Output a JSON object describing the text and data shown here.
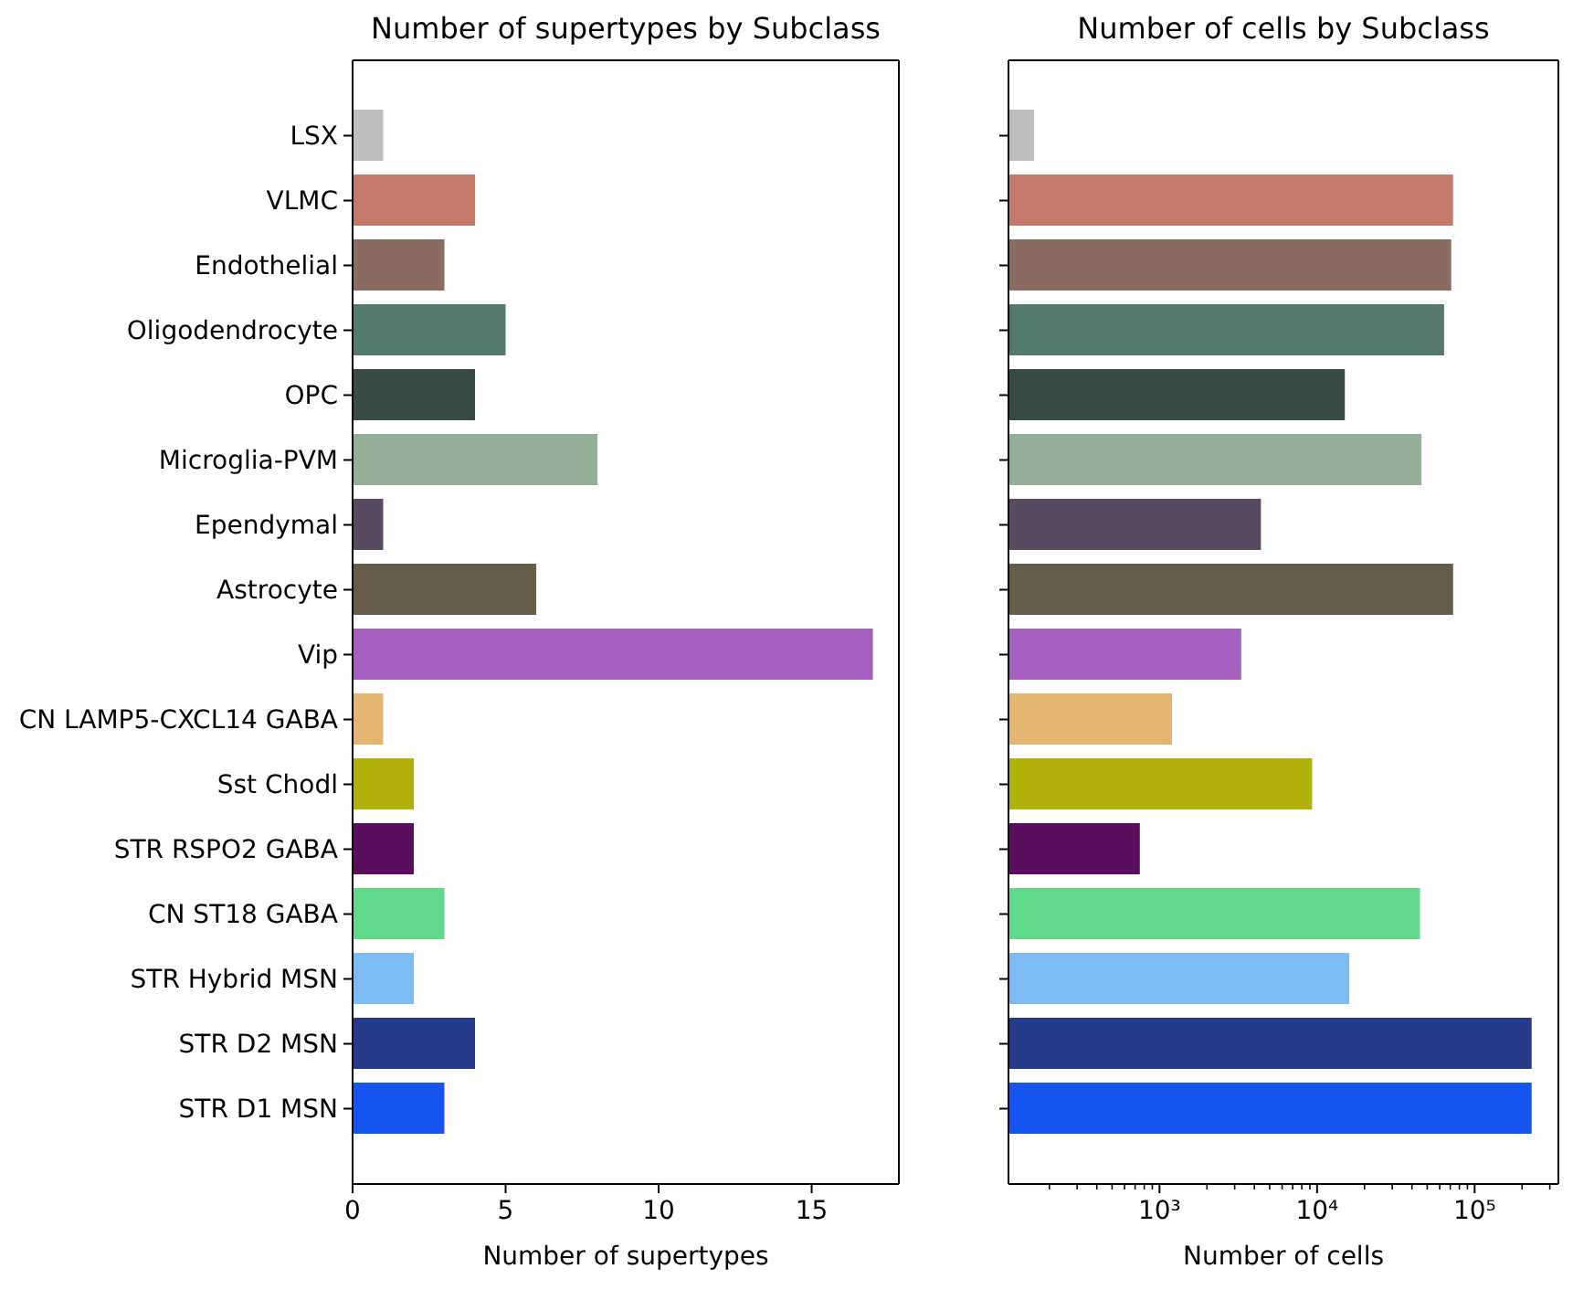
{
  "chart_data": [
    {
      "type": "bar",
      "orientation": "horizontal",
      "title": "Number of supertypes by Subclass",
      "xlabel": "Number of supertypes",
      "categories": [
        "LSX",
        "VLMC",
        "Endothelial",
        "Oligodendrocyte",
        "OPC",
        "Microglia-PVM",
        "Ependymal",
        "Astrocyte",
        "Vip",
        "CN LAMP5-CXCL14 GABA",
        "Sst Chodl",
        "STR RSPO2 GABA",
        "CN ST18 GABA",
        "STR Hybrid MSN",
        "STR D2 MSN",
        "STR D1 MSN"
      ],
      "values": [
        1,
        4,
        3,
        5,
        4,
        8,
        1,
        6,
        17,
        1,
        2,
        2,
        3,
        2,
        4,
        3
      ],
      "colors": [
        "#bebebe",
        "#c5796a",
        "#8b6c62",
        "#53786d",
        "#374a45",
        "#94af97",
        "#594a62",
        "#665c48",
        "#a45fbf",
        "#e4b571",
        "#b1b10c",
        "#5c0e5e",
        "#5fd98a",
        "#7cbcf3",
        "#253b8a",
        "#1755f0"
      ],
      "xlim": [
        0,
        17.85
      ],
      "xticks": [
        0,
        5,
        10,
        15
      ]
    },
    {
      "type": "bar",
      "orientation": "horizontal",
      "title": "Number of cells by Subclass",
      "xlabel": "Number of cells",
      "categories": [
        null,
        null,
        null,
        null,
        null,
        null,
        null,
        null,
        null,
        null,
        null,
        null,
        null,
        null,
        null,
        null
      ],
      "values": [
        160,
        73000,
        71000,
        64000,
        15000,
        46000,
        4400,
        73000,
        3300,
        1200,
        9300,
        750,
        45000,
        16000,
        230000,
        230000
      ],
      "colors": [
        "#bebebe",
        "#c5796a",
        "#8b6c62",
        "#53786d",
        "#374a45",
        "#94af97",
        "#594a62",
        "#665c48",
        "#a45fbf",
        "#e4b571",
        "#b1b10c",
        "#5c0e5e",
        "#5fd98a",
        "#7cbcf3",
        "#253b8a",
        "#1755f0"
      ],
      "log": "x",
      "xlim": [
        110,
        340000
      ],
      "xticks": [
        {
          "value": 200,
          "label": null
        },
        {
          "value": 300,
          "label": null
        },
        {
          "value": 400,
          "label": null
        },
        {
          "value": 500,
          "label": null
        },
        {
          "value": 600,
          "label": null
        },
        {
          "value": 700,
          "label": null
        },
        {
          "value": 800,
          "label": null
        },
        {
          "value": 900,
          "label": null
        },
        {
          "value": 1000,
          "label": "10³"
        },
        {
          "value": 2000,
          "label": null
        },
        {
          "value": 3000,
          "label": null
        },
        {
          "value": 4000,
          "label": null
        },
        {
          "value": 5000,
          "label": null
        },
        {
          "value": 6000,
          "label": null
        },
        {
          "value": 7000,
          "label": null
        },
        {
          "value": 8000,
          "label": null
        },
        {
          "value": 9000,
          "label": null
        },
        {
          "value": 10000,
          "label": "10⁴"
        },
        {
          "value": 20000,
          "label": null
        },
        {
          "value": 30000,
          "label": null
        },
        {
          "value": 40000,
          "label": null
        },
        {
          "value": 50000,
          "label": null
        },
        {
          "value": 60000,
          "label": null
        },
        {
          "value": 70000,
          "label": null
        },
        {
          "value": 80000,
          "label": null
        },
        {
          "value": 90000,
          "label": null
        },
        {
          "value": 100000,
          "label": "10⁵"
        },
        {
          "value": 200000,
          "label": null
        },
        {
          "value": 300000,
          "label": null
        }
      ]
    }
  ]
}
